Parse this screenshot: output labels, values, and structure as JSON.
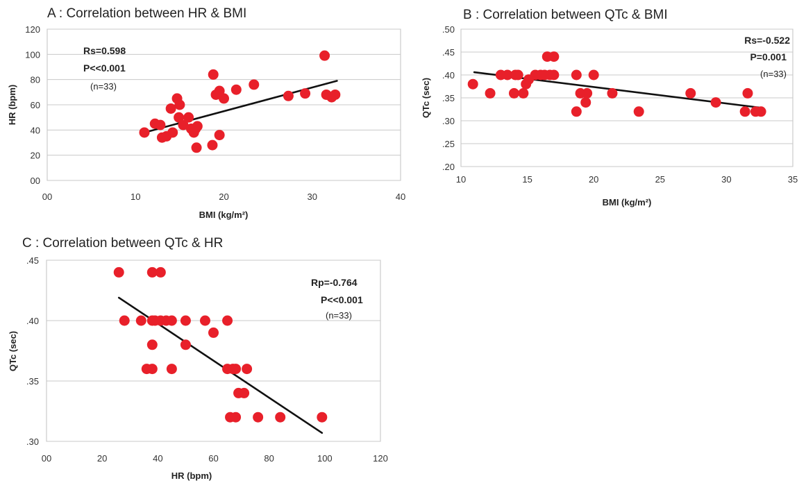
{
  "chart_data": [
    {
      "type": "scatter",
      "panel": "A",
      "title": "A : Correlation between HR & BMI",
      "xlabel": "BMI (kg/m²)",
      "ylabel": "HR (bpm)",
      "xlim": [
        0,
        40
      ],
      "ylim": [
        0,
        120
      ],
      "xticks": [
        "00",
        "10",
        "20",
        "30",
        "40"
      ],
      "yticks": [
        "00",
        "20",
        "40",
        "60",
        "80",
        "100",
        "120"
      ],
      "grid": "horizontal",
      "stats": [
        "Rs=0.598",
        "P<<0.001",
        "(n=33)"
      ],
      "trendline": [
        [
          11,
          38
        ],
        [
          32.8,
          79
        ]
      ],
      "points": [
        [
          11.0,
          38
        ],
        [
          12.2,
          45
        ],
        [
          12.8,
          44
        ],
        [
          13.0,
          34
        ],
        [
          13.5,
          35
        ],
        [
          14.0,
          57
        ],
        [
          14.2,
          38
        ],
        [
          14.7,
          65
        ],
        [
          14.9,
          50
        ],
        [
          15.0,
          60
        ],
        [
          15.4,
          44
        ],
        [
          16.0,
          50
        ],
        [
          16.3,
          41
        ],
        [
          16.6,
          38
        ],
        [
          16.8,
          41
        ],
        [
          17.0,
          43
        ],
        [
          16.9,
          26
        ],
        [
          18.7,
          28
        ],
        [
          18.8,
          84
        ],
        [
          19.1,
          68
        ],
        [
          19.5,
          71
        ],
        [
          19.5,
          36
        ],
        [
          20.0,
          65
        ],
        [
          21.4,
          72
        ],
        [
          23.4,
          76
        ],
        [
          27.3,
          67
        ],
        [
          29.2,
          69
        ],
        [
          31.4,
          99
        ],
        [
          31.6,
          68
        ],
        [
          32.2,
          66
        ],
        [
          32.6,
          68
        ]
      ]
    },
    {
      "type": "scatter",
      "panel": "B",
      "title": "B : Correlation between QTc & BMI",
      "xlabel": "BMI (kg/m²)",
      "ylabel": "QTc (sec)",
      "xlim": [
        10,
        35
      ],
      "ylim": [
        0.2,
        0.5
      ],
      "xticks": [
        "10",
        "15",
        "20",
        "25",
        "30",
        "35"
      ],
      "yticks": [
        ".20",
        ".25",
        ".30",
        ".35",
        ".40",
        ".45",
        ".50"
      ],
      "grid": "horizontal",
      "stats": [
        "Rs=-0.522",
        "P=0.001",
        "(n=33)"
      ],
      "trendline": [
        [
          11,
          0.406
        ],
        [
          32.7,
          0.328
        ]
      ],
      "points": [
        [
          10.9,
          0.38
        ],
        [
          12.2,
          0.36
        ],
        [
          13.0,
          0.4
        ],
        [
          13.5,
          0.4
        ],
        [
          14.0,
          0.36
        ],
        [
          14.1,
          0.4
        ],
        [
          14.3,
          0.4
        ],
        [
          14.7,
          0.36
        ],
        [
          14.9,
          0.38
        ],
        [
          15.1,
          0.39
        ],
        [
          15.6,
          0.4
        ],
        [
          16.0,
          0.4
        ],
        [
          16.3,
          0.4
        ],
        [
          16.5,
          0.44
        ],
        [
          16.7,
          0.4
        ],
        [
          17.0,
          0.44
        ],
        [
          17.0,
          0.4
        ],
        [
          18.7,
          0.32
        ],
        [
          18.7,
          0.4
        ],
        [
          19.0,
          0.36
        ],
        [
          19.4,
          0.34
        ],
        [
          19.5,
          0.36
        ],
        [
          20.0,
          0.4
        ],
        [
          21.4,
          0.36
        ],
        [
          23.4,
          0.32
        ],
        [
          27.3,
          0.36
        ],
        [
          29.2,
          0.34
        ],
        [
          31.4,
          0.32
        ],
        [
          31.6,
          0.36
        ],
        [
          32.2,
          0.32
        ],
        [
          32.6,
          0.32
        ]
      ]
    },
    {
      "type": "scatter",
      "panel": "C",
      "title": "C : Correlation between QTc & HR",
      "xlabel": "HR (bpm)",
      "ylabel": "QTc  (sec)",
      "xlim": [
        0,
        120
      ],
      "ylim": [
        0.3,
        0.45
      ],
      "xticks": [
        "00",
        "20",
        "40",
        "60",
        "80",
        "100",
        "120"
      ],
      "yticks": [
        ".30",
        ".35",
        ".40",
        ".45"
      ],
      "grid": "horizontal",
      "stats": [
        "Rp=-0.764",
        "P<<0.001",
        "(n=33)"
      ],
      "trendline": [
        [
          26,
          0.419
        ],
        [
          99,
          0.307
        ]
      ],
      "points": [
        [
          26,
          0.44
        ],
        [
          28,
          0.4
        ],
        [
          34,
          0.4
        ],
        [
          36,
          0.36
        ],
        [
          38,
          0.44
        ],
        [
          38,
          0.38
        ],
        [
          38,
          0.36
        ],
        [
          38,
          0.4
        ],
        [
          41,
          0.44
        ],
        [
          39,
          0.4
        ],
        [
          41,
          0.4
        ],
        [
          43,
          0.4
        ],
        [
          45,
          0.4
        ],
        [
          45,
          0.36
        ],
        [
          50,
          0.4
        ],
        [
          50,
          0.38
        ],
        [
          57,
          0.4
        ],
        [
          60,
          0.39
        ],
        [
          65,
          0.4
        ],
        [
          65,
          0.36
        ],
        [
          66,
          0.32
        ],
        [
          67,
          0.36
        ],
        [
          68,
          0.32
        ],
        [
          68,
          0.36
        ],
        [
          69,
          0.34
        ],
        [
          71,
          0.34
        ],
        [
          72,
          0.36
        ],
        [
          76,
          0.32
        ],
        [
          84,
          0.32
        ],
        [
          99,
          0.32
        ]
      ]
    }
  ]
}
